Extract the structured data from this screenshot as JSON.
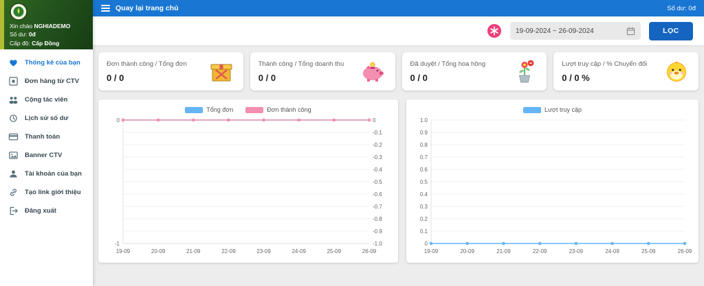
{
  "topbar": {
    "back_label": "Quay lại trang chủ",
    "balance": "Số dư: 0đ"
  },
  "sidebar": {
    "greeting_prefix": "Xin chào ",
    "username": "NGHIADEMO",
    "balance_label": "Số dư:",
    "balance_value": "0đ",
    "level_label": "Cấp độ:",
    "level_value": "Cấp Đồng",
    "items": [
      {
        "label": "Thống kê của bạn",
        "icon": "heart-icon",
        "active": true
      },
      {
        "label": "Đơn hàng từ CTV",
        "icon": "orders-icon",
        "active": false
      },
      {
        "label": "Cộng tác viên",
        "icon": "people-icon",
        "active": false
      },
      {
        "label": "Lịch sử số dư",
        "icon": "history-icon",
        "active": false
      },
      {
        "label": "Thanh toán",
        "icon": "payment-icon",
        "active": false
      },
      {
        "label": "Banner CTV",
        "icon": "banner-icon",
        "active": false
      },
      {
        "label": "Tài khoản của bạn",
        "icon": "account-icon",
        "active": false
      },
      {
        "label": "Tạo link giới thiệu",
        "icon": "link-icon",
        "active": false
      },
      {
        "label": "Đăng xuất",
        "icon": "logout-icon",
        "active": false
      }
    ]
  },
  "filter": {
    "date_range": "19-09-2024 ~ 26-09-2024",
    "filter_button": "LỌC"
  },
  "stats": [
    {
      "label": "Đơn thành công / Tổng đơn",
      "value": "0 / 0",
      "icon": "gift-box-icon"
    },
    {
      "label": "Thành công / Tổng doanh thu",
      "value": "0 / 0",
      "icon": "piggy-bank-icon"
    },
    {
      "label": "Đã duyệt / Tổng hoa hồng",
      "value": "0 / 0",
      "icon": "flower-pot-icon"
    },
    {
      "label": "Lượt truy cập / % Chuyển đổi",
      "value": "0 / 0 %",
      "icon": "chick-icon"
    }
  ],
  "chart_data": [
    {
      "type": "line",
      "x": [
        "19-09",
        "20-09",
        "21-09",
        "22-09",
        "23-09",
        "24-09",
        "25-09",
        "26-09"
      ],
      "y_range": [
        0,
        -1
      ],
      "legend_position": "top",
      "grid": true,
      "left_axis": [
        {
          "v": 0,
          "label": "0"
        },
        {
          "v": -1,
          "label": "-1"
        }
      ],
      "right_axis": [
        {
          "v": 0,
          "label": "0"
        },
        {
          "v": -0.1,
          "label": "-0.1"
        },
        {
          "v": -0.2,
          "label": "-0.2"
        },
        {
          "v": -0.3,
          "label": "-0.3"
        },
        {
          "v": -0.4,
          "label": "-0.4"
        },
        {
          "v": -0.5,
          "label": "-0.5"
        },
        {
          "v": -0.6,
          "label": "-0.6"
        },
        {
          "v": -0.7,
          "label": "-0.7"
        },
        {
          "v": -0.8,
          "label": "-0.8"
        },
        {
          "v": -0.9,
          "label": "-0.9"
        },
        {
          "v": -1,
          "label": "-1.0"
        }
      ],
      "series": [
        {
          "name": "Tổng đơn",
          "color": "#64b5f6",
          "values": [
            0,
            0,
            0,
            0,
            0,
            0,
            0,
            0
          ]
        },
        {
          "name": "Đơn thành công",
          "color": "#f48fb1",
          "values": [
            0,
            0,
            0,
            0,
            0,
            0,
            0,
            0
          ]
        }
      ]
    },
    {
      "type": "line",
      "x": [
        "19-09",
        "20-09",
        "21-09",
        "22-09",
        "23-09",
        "24-09",
        "25-09",
        "26-09"
      ],
      "y_range": [
        1,
        0
      ],
      "legend_position": "top",
      "grid": true,
      "left_axis": [
        {
          "v": 1,
          "label": "1.0"
        },
        {
          "v": 0.9,
          "label": "0.9"
        },
        {
          "v": 0.8,
          "label": "0.8"
        },
        {
          "v": 0.7,
          "label": "0.7"
        },
        {
          "v": 0.6,
          "label": "0.6"
        },
        {
          "v": 0.5,
          "label": "0.5"
        },
        {
          "v": 0.4,
          "label": "0.4"
        },
        {
          "v": 0.3,
          "label": "0.3"
        },
        {
          "v": 0.2,
          "label": "0.2"
        },
        {
          "v": 0.1,
          "label": "0.1"
        },
        {
          "v": 0,
          "label": "0"
        }
      ],
      "series": [
        {
          "name": "Lượt truy cập",
          "color": "#64b5f6",
          "values": [
            0,
            0,
            0,
            0,
            0,
            0,
            0,
            0
          ]
        }
      ]
    }
  ],
  "colors": {
    "topbar": "#1976d2",
    "button": "#1565c0",
    "legend_blue": "#64b5f6",
    "legend_pink": "#f48fb1",
    "sidebar_header_green": "#23541d",
    "sidebar_accent_stripe": "#b2bd34"
  }
}
